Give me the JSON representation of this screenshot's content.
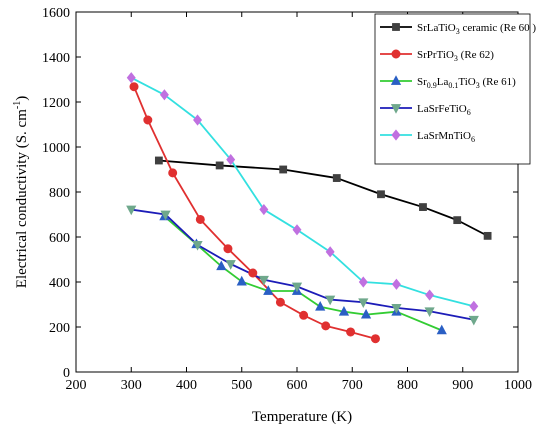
{
  "chart_data": {
    "type": "line",
    "title": "",
    "xlabel": "Temperature (K)",
    "ylabel_main": "Electrical conductivity (S. cm",
    "ylabel_sup": "-1",
    "ylabel_close": ")",
    "xlim": [
      200,
      1000
    ],
    "ylim": [
      0,
      1600
    ],
    "xticks": [
      200,
      300,
      400,
      500,
      600,
      700,
      800,
      900,
      1000
    ],
    "yticks": [
      0,
      200,
      400,
      600,
      800,
      1000,
      1200,
      1400,
      1600
    ],
    "legend_position": "top-right",
    "grid": false,
    "series": [
      {
        "name": "SrLaTiO3 ceramic (Re 60 )",
        "legend_parts": [
          [
            "SrLaTiO",
            ""
          ],
          [
            "3",
            "sub"
          ],
          [
            " ceramic (Re 60 )",
            ""
          ]
        ],
        "color": "#404040",
        "line_color": "#000000",
        "marker": "square",
        "x": [
          350,
          460,
          575,
          672,
          752,
          828,
          890,
          945
        ],
        "y": [
          940,
          918,
          900,
          862,
          790,
          733,
          675,
          605
        ]
      },
      {
        "name": "SrPrTiO3 (Re 62)",
        "legend_parts": [
          [
            "SrPrTiO",
            ""
          ],
          [
            "3",
            "sub"
          ],
          [
            " (Re 62)",
            ""
          ]
        ],
        "color": "#e03030",
        "line_color": "#e03030",
        "marker": "circle",
        "x": [
          305,
          330,
          375,
          425,
          475,
          520,
          570,
          612,
          652,
          697,
          742
        ],
        "y": [
          1268,
          1120,
          885,
          678,
          548,
          440,
          310,
          252,
          205,
          178,
          148
        ]
      },
      {
        "name": "Sr0.9La0.1TiO3 (Re 61)",
        "legend_parts": [
          [
            "Sr",
            ""
          ],
          [
            "0.9",
            "sub"
          ],
          [
            "La",
            ""
          ],
          [
            "0.1",
            "sub"
          ],
          [
            "TiO",
            ""
          ],
          [
            "3",
            "sub"
          ],
          [
            " (Re 61)",
            ""
          ]
        ],
        "color": "#2a5fc4",
        "line_color": "#33cc33",
        "marker": "triangle-up",
        "x": [
          360,
          418,
          463,
          500,
          548,
          600,
          642,
          685,
          725,
          780,
          862
        ],
        "y": [
          692,
          568,
          470,
          402,
          360,
          360,
          290,
          268,
          255,
          268,
          185
        ]
      },
      {
        "name": "LaSrFeTiO6",
        "legend_parts": [
          [
            "LaSrFeTiO",
            ""
          ],
          [
            "6",
            "sub"
          ]
        ],
        "color": "#6fa88c",
        "line_color": "#1c1cb8",
        "marker": "triangle-down",
        "x": [
          300,
          362,
          420,
          480,
          540,
          600,
          660,
          720,
          780,
          840,
          920
        ],
        "y": [
          722,
          700,
          565,
          480,
          410,
          380,
          322,
          310,
          285,
          270,
          232
        ]
      },
      {
        "name": "LaSrMnTiO6",
        "legend_parts": [
          [
            "LaSrMnTiO",
            ""
          ],
          [
            "6",
            "sub"
          ]
        ],
        "color": "#c070e0",
        "line_color": "#33e0e0",
        "marker": "diamond",
        "x": [
          300,
          360,
          420,
          480,
          540,
          600,
          660,
          720,
          780,
          840,
          920
        ],
        "y": [
          1308,
          1232,
          1120,
          944,
          722,
          632,
          534,
          400,
          390,
          342,
          292
        ]
      }
    ]
  }
}
